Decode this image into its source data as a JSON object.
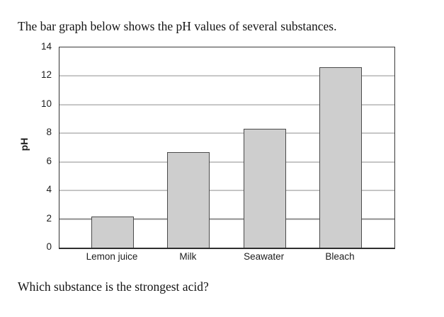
{
  "page": {
    "intro": "The bar graph below shows the pH values of several substances.",
    "question": "Which substance is the strongest acid?"
  },
  "chart_data": {
    "type": "bar",
    "categories": [
      "Lemon juice",
      "Milk",
      "Seawater",
      "Bleach"
    ],
    "values": [
      2.2,
      6.7,
      8.3,
      12.6
    ],
    "title": "",
    "xlabel": "",
    "ylabel": "pH",
    "ylim": [
      0,
      14
    ],
    "yticks": [
      0,
      2,
      4,
      6,
      8,
      10,
      12,
      14
    ],
    "grid": "horizontal gridlines at each y tick, none at 0 and 14",
    "legend_position": "none",
    "bar_fill_color": "#cecece",
    "bar_border_color": "#4a4a4a",
    "gridline_color": "#8f8f8f",
    "frame_color": "#3a3a3a",
    "text_color": "#141414"
  }
}
